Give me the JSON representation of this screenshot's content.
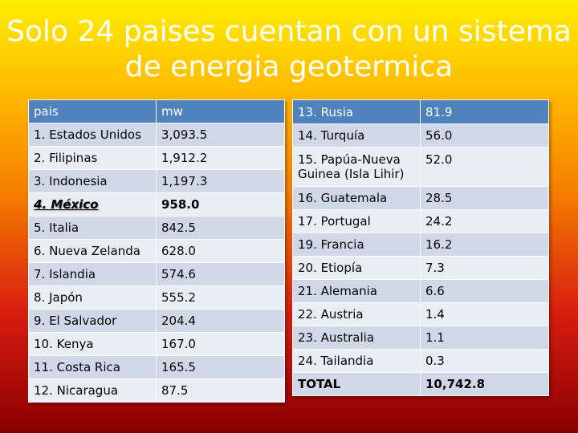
{
  "title": "Solo 24 paises cuentan con un sistema de energia geotermica",
  "left_table": {
    "header": [
      "pais",
      "mw"
    ],
    "rows": [
      [
        "1. Estados Unidos",
        "3,093.5"
      ],
      [
        "2. Filipinas",
        "1,912.2"
      ],
      [
        "3. Indonesia",
        "1,197.3"
      ],
      [
        "4. México",
        "958.0"
      ],
      [
        "5. Italia",
        "842.5"
      ],
      [
        "6. Nueva Zelanda",
        "628.0"
      ],
      [
        "7. Islandia",
        "574.6"
      ],
      [
        "8. Japón",
        "555.2"
      ],
      [
        "9. El Salvador",
        "204.4"
      ],
      [
        "10. Kenya",
        "167.0"
      ],
      [
        "11. Costa Rica",
        "165.5"
      ],
      [
        "12. Nicaragua",
        "87.5"
      ]
    ]
  },
  "right_table": {
    "rows": [
      [
        "13. Rusia",
        "81.9"
      ],
      [
        "14. Turquía",
        "56.0"
      ],
      [
        "15. Papúa-Nueva Guinea (Isla Lihir)",
        "52.0"
      ],
      [
        "16. Guatemala",
        "28.5"
      ],
      [
        "17. Portugal",
        "24.2"
      ],
      [
        "19. Francia",
        "16.2"
      ],
      [
        "20. Etiopía",
        "7.3"
      ],
      [
        "21. Alemania",
        "6.6"
      ],
      [
        "22. Austria",
        "1.4"
      ],
      [
        "23. Australia",
        "1.1"
      ],
      [
        "24. Tailandia",
        "0.3"
      ],
      [
        "TOTAL",
        "10,742.8"
      ]
    ]
  },
  "colors": {
    "header": "#4f81bd",
    "row_dark": "#d0d8e8",
    "row_light": "#e9edf4"
  }
}
